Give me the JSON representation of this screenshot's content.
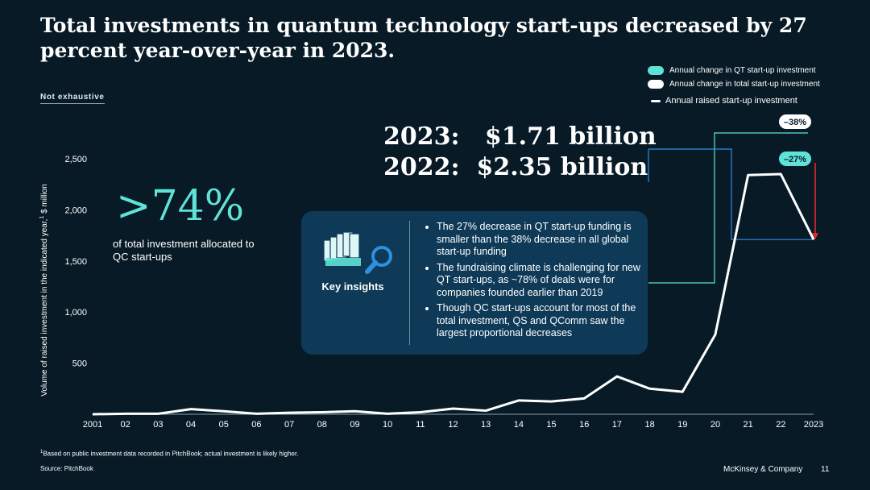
{
  "title": "Total investments in quantum technology start-ups decreased by 27 percent year-over-year in 2023.",
  "scope_note": "Not exhaustive",
  "legend": [
    {
      "label": "Annual change in QT start-up investment",
      "color": "#5fe3d8",
      "shape": "pill"
    },
    {
      "label": "Annual change in total start-up investment",
      "color": "#ffffff",
      "shape": "pill"
    },
    {
      "label": "Annual raised start-up investment",
      "color": "#ffffff",
      "shape": "line"
    }
  ],
  "headline_stat": {
    "value": ">74%",
    "text": "of total investment allocated to QC start-ups"
  },
  "totals": [
    {
      "label": "2023:",
      "value": "$1.71 billion"
    },
    {
      "label": "2022:",
      "value": "$2.35 billion"
    }
  ],
  "key_insights": {
    "label": "Key insights",
    "icon": "document-magnifier-icon",
    "bullets": [
      "The 27% decrease in QT start-up funding is smaller than the 38% decrease in all global start-up funding",
      "The fundraising climate is challenging for new QT start-ups, as ~78% of deals were for companies founded earlier than 2019",
      "Though QC start-ups account for most of the total investment, QS and QComm saw the largest proportional decreases"
    ]
  },
  "chart_data": {
    "type": "line",
    "title": "",
    "xlabel": "",
    "ylabel": "Volume of raised investment in the indicated year, $ million",
    "ylabel_footnote": "1",
    "x": [
      "2001",
      "02",
      "03",
      "04",
      "05",
      "06",
      "07",
      "08",
      "09",
      "10",
      "11",
      "12",
      "13",
      "14",
      "15",
      "16",
      "17",
      "18",
      "19",
      "20",
      "21",
      "22",
      "2023"
    ],
    "series": [
      {
        "name": "Annual raised start-up investment",
        "values": [
          0,
          5,
          5,
          50,
          30,
          5,
          15,
          20,
          30,
          5,
          20,
          55,
          35,
          135,
          125,
          155,
          370,
          250,
          220,
          780,
          2340,
          2350,
          1710
        ]
      }
    ],
    "yticks": [
      500,
      1000,
      1500,
      2000,
      2500
    ],
    "ytick_labels": [
      "500",
      "1,000",
      "1,500",
      "2,000",
      "2,500"
    ],
    "ylim": [
      0,
      2500
    ],
    "grid": false,
    "annotations": [
      {
        "label": "–38%",
        "color": "#ffffff",
        "text_color": "#071a26",
        "refers_to": "Annual change in total start-up investment"
      },
      {
        "label": "–27%",
        "color": "#5fe3d8",
        "text_color": "#071a26",
        "refers_to": "Annual change in QT start-up investment"
      }
    ],
    "colors": {
      "line": "#ffffff",
      "teal": "#5fe3d8",
      "blue": "#2f8fe0",
      "arrow": "#e02a2a",
      "axis": "#8aa0ad"
    }
  },
  "footnote": {
    "marker": "1",
    "text": "Based on public investment data recorded in PitchBook; actual investment is likely higher."
  },
  "source": "Source: PitchBook",
  "brand": "McKinsey & Company",
  "page_number": "11"
}
